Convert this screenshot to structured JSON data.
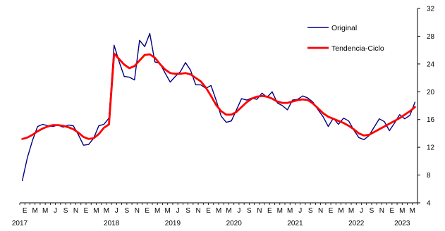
{
  "chart_data": {
    "type": "line",
    "title": "",
    "xlabel": "",
    "ylabel": "",
    "ylim": [
      4,
      32
    ],
    "y_ticks": [
      4,
      8,
      12,
      16,
      20,
      24,
      28,
      32
    ],
    "y_axis_position": "right",
    "grid": false,
    "legend_position": "top-right",
    "month_letters": [
      "E",
      "M",
      "M",
      "J",
      "S",
      "N"
    ],
    "years": [
      "2017",
      "2018",
      "2019",
      "2020",
      "2021",
      "2022",
      "2023"
    ],
    "series": [
      {
        "name": "Original",
        "color": "#000080",
        "values": [
          7.2,
          10.5,
          13.0,
          15.0,
          15.3,
          15.1,
          15.0,
          15.2,
          14.9,
          15.2,
          15.1,
          13.8,
          12.3,
          12.4,
          13.3,
          15.1,
          15.3,
          16.2,
          26.7,
          24.3,
          22.2,
          22.1,
          21.7,
          27.4,
          26.5,
          28.4,
          24.3,
          24.1,
          22.7,
          21.4,
          22.2,
          22.9,
          24.2,
          23.1,
          21.0,
          21.0,
          20.5,
          20.9,
          18.8,
          16.5,
          15.6,
          15.8,
          17.4,
          19.0,
          18.8,
          19.1,
          18.9,
          19.8,
          19.2,
          20.0,
          18.4,
          18.0,
          17.4,
          18.8,
          18.9,
          19.4,
          19.1,
          18.5,
          17.4,
          16.4,
          15.0,
          16.2,
          15.3,
          16.2,
          15.8,
          14.5,
          13.4,
          13.1,
          13.7,
          14.9,
          16.1,
          15.7,
          14.4,
          15.5,
          16.7,
          16.1,
          16.6,
          18.5
        ]
      },
      {
        "name": "Tendencia-Ciclo",
        "color": "#ff0000",
        "values": [
          13.2,
          13.4,
          13.8,
          14.3,
          14.7,
          15.0,
          15.2,
          15.2,
          15.1,
          14.9,
          14.6,
          14.1,
          13.5,
          13.2,
          13.3,
          13.9,
          14.8,
          15.3,
          25.5,
          24.7,
          23.9,
          23.4,
          23.7,
          24.5,
          25.3,
          25.4,
          24.9,
          24.0,
          23.2,
          22.7,
          22.6,
          22.6,
          22.7,
          22.5,
          22.0,
          21.5,
          20.6,
          19.4,
          18.1,
          17.2,
          16.7,
          16.7,
          17.1,
          17.8,
          18.5,
          19.0,
          19.3,
          19.4,
          19.3,
          19.0,
          18.6,
          18.4,
          18.4,
          18.6,
          18.8,
          18.9,
          18.8,
          18.3,
          17.6,
          16.9,
          16.4,
          16.1,
          15.8,
          15.5,
          15.1,
          14.6,
          14.0,
          13.7,
          13.8,
          14.2,
          14.6,
          15.0,
          15.4,
          15.8,
          16.2,
          16.7,
          17.2,
          17.8
        ]
      }
    ]
  }
}
